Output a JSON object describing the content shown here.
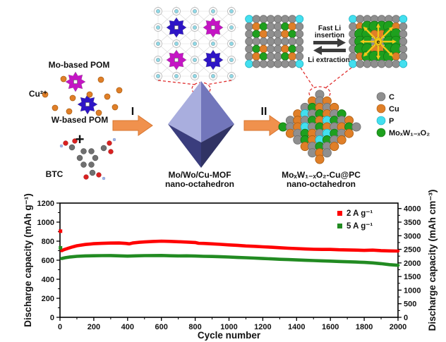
{
  "scheme": {
    "labels": {
      "mo_pom": "Mo-based POM",
      "cu_ion": "Cu²⁺",
      "w_pom": "W-based POM",
      "plus": "+",
      "btc": "BTC",
      "step1": "I",
      "step2": "II",
      "mof_line1": "Mo/Wo/Cu-MOF",
      "mof_line2": "nano-octahedron",
      "product_line1": "MoₓW₁₋ₓO₂-Cu@PC",
      "product_line2": "nano-octahedron",
      "fast_li_line1": "Fast Li",
      "fast_li_line2": "insertion",
      "li_extraction": "Li extraction",
      "electron": "e"
    },
    "legend": [
      {
        "label": "C",
        "color": "#8f8f8f"
      },
      {
        "label": "Cu",
        "color": "#e07f28"
      },
      {
        "label": "P",
        "color": "#43dfef"
      },
      {
        "label": "MoₓW₁₋ₓO₂",
        "color": "#1ea01e"
      }
    ],
    "palette": {
      "g": "#8f8f8f",
      "o": "#e07f28",
      "n": "#1ea01e",
      "c": "#43dfef"
    },
    "pom_colors": {
      "mo_based": "#c415c4",
      "w_based": "#2e15c6"
    },
    "lattice_left": [
      "cggggggc",
      "gonggnog",
      "gnoggong",
      "gggggggg",
      "gnoggong",
      "gonggnog",
      "cggggggc"
    ],
    "lattice_right": [
      "cggggggc",
      "gonnnnog",
      "gnnoonng",
      "gnnggnng",
      "gnnoonng",
      "gonnnnog",
      "cggggggc"
    ],
    "cluster": [
      "g",
      "ogo",
      "gnogo",
      "ocgnogn",
      "gognocngo",
      "ngocgnogong",
      "ognogcngo",
      "gnocngo",
      "ogngo",
      "gog",
      "o"
    ]
  },
  "chart_data": {
    "type": "line",
    "title": "",
    "xlabel": "Cycle number",
    "ylabel_left": "Discharge capacity (mAh g⁻¹)",
    "ylabel_right": "Discharge capacity (mAh cm⁻³)",
    "xlim": [
      0,
      2000
    ],
    "ylim_left": [
      0,
      1200
    ],
    "ylim_right": [
      0,
      4200
    ],
    "xticks": [
      0,
      200,
      400,
      600,
      800,
      1000,
      1200,
      1400,
      1600,
      1800,
      2000
    ],
    "x_minor_step": 100,
    "yticks_left": [
      0,
      200,
      400,
      600,
      800,
      1000,
      1200
    ],
    "y_left_minor_step": 100,
    "yticks_right": [
      0,
      500,
      1000,
      1500,
      2000,
      2500,
      3000,
      3500,
      4000
    ],
    "y_right_minor_step": 250,
    "grid": false,
    "legend_position": "top-right",
    "series": [
      {
        "name": "2 A g⁻¹",
        "color": "#ff0000",
        "first_points": [
          [
            3,
            905
          ]
        ],
        "points": [
          [
            10,
            700
          ],
          [
            25,
            712
          ],
          [
            50,
            727
          ],
          [
            75,
            740
          ],
          [
            100,
            752
          ],
          [
            150,
            765
          ],
          [
            200,
            773
          ],
          [
            250,
            777
          ],
          [
            300,
            780
          ],
          [
            350,
            781
          ],
          [
            390,
            776
          ],
          [
            410,
            772
          ],
          [
            430,
            781
          ],
          [
            470,
            788
          ],
          [
            500,
            792
          ],
          [
            550,
            797
          ],
          [
            600,
            800
          ],
          [
            650,
            798
          ],
          [
            700,
            794
          ],
          [
            750,
            790
          ],
          [
            800,
            786
          ],
          [
            820,
            778
          ],
          [
            850,
            776
          ],
          [
            900,
            772
          ],
          [
            950,
            767
          ],
          [
            1000,
            761
          ],
          [
            1050,
            756
          ],
          [
            1100,
            750
          ],
          [
            1150,
            746
          ],
          [
            1200,
            741
          ],
          [
            1250,
            736
          ],
          [
            1300,
            731
          ],
          [
            1350,
            726
          ],
          [
            1400,
            722
          ],
          [
            1450,
            718
          ],
          [
            1500,
            715
          ],
          [
            1550,
            713
          ],
          [
            1600,
            713
          ],
          [
            1650,
            710
          ],
          [
            1700,
            708
          ],
          [
            1750,
            706
          ],
          [
            1800,
            703
          ],
          [
            1850,
            706
          ],
          [
            1900,
            701
          ],
          [
            1950,
            698
          ],
          [
            2000,
            696
          ]
        ]
      },
      {
        "name": "5 A g⁻¹",
        "color": "#228b22",
        "first_points": [
          [
            3,
            730
          ]
        ],
        "points": [
          [
            10,
            618
          ],
          [
            30,
            626
          ],
          [
            60,
            634
          ],
          [
            100,
            641
          ],
          [
            150,
            645
          ],
          [
            200,
            647
          ],
          [
            250,
            648
          ],
          [
            300,
            649
          ],
          [
            350,
            646
          ],
          [
            400,
            643
          ],
          [
            450,
            646
          ],
          [
            500,
            648
          ],
          [
            550,
            649
          ],
          [
            600,
            650
          ],
          [
            650,
            647
          ],
          [
            700,
            645
          ],
          [
            750,
            646
          ],
          [
            800,
            644
          ],
          [
            850,
            641
          ],
          [
            900,
            639
          ],
          [
            950,
            636
          ],
          [
            1000,
            633
          ],
          [
            1050,
            629
          ],
          [
            1100,
            626
          ],
          [
            1150,
            622
          ],
          [
            1200,
            618
          ],
          [
            1250,
            614
          ],
          [
            1300,
            610
          ],
          [
            1350,
            607
          ],
          [
            1400,
            603
          ],
          [
            1450,
            599
          ],
          [
            1500,
            596
          ],
          [
            1550,
            593
          ],
          [
            1600,
            590
          ],
          [
            1650,
            587
          ],
          [
            1700,
            584
          ],
          [
            1750,
            581
          ],
          [
            1800,
            577
          ],
          [
            1850,
            572
          ],
          [
            1900,
            564
          ],
          [
            1950,
            553
          ],
          [
            2000,
            547
          ]
        ]
      }
    ]
  }
}
